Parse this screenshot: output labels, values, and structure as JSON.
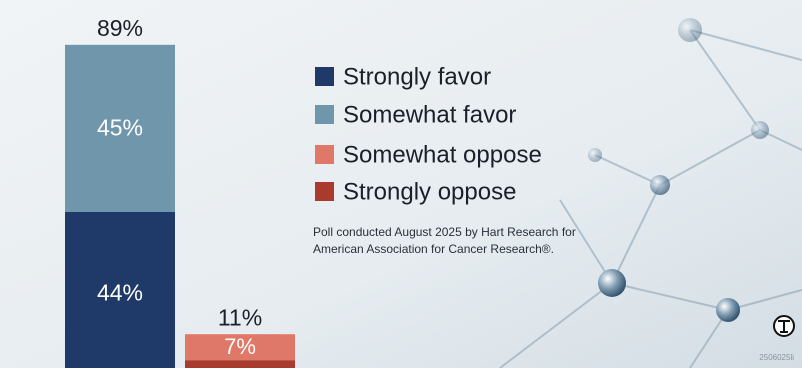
{
  "chart_data": {
    "type": "stacked_bar",
    "categories": [
      null,
      null
    ],
    "series": [
      {
        "name": "Strongly favor",
        "color": "#1f3a68",
        "values": [
          44,
          null
        ],
        "value_labels": [
          "44%",
          null
        ]
      },
      {
        "name": "Somewhat favor",
        "color": "#6f96ab",
        "values": [
          45,
          null
        ],
        "value_labels": [
          "45%",
          null
        ]
      },
      {
        "name": "Somewhat oppose",
        "color": "#e0786a",
        "values": [
          null,
          7
        ],
        "value_labels": [
          null,
          "7%"
        ]
      },
      {
        "name": "Strongly oppose",
        "color": "#a83a2e",
        "values": [
          null,
          4
        ],
        "value_labels": [
          null,
          null
        ]
      }
    ],
    "totals": [
      89,
      11
    ],
    "total_labels": [
      "89%",
      "11%"
    ],
    "note": "Poll conducted August 2025 by Hart Research for American Association for Cancer Research®.",
    "code": "2506025li"
  }
}
